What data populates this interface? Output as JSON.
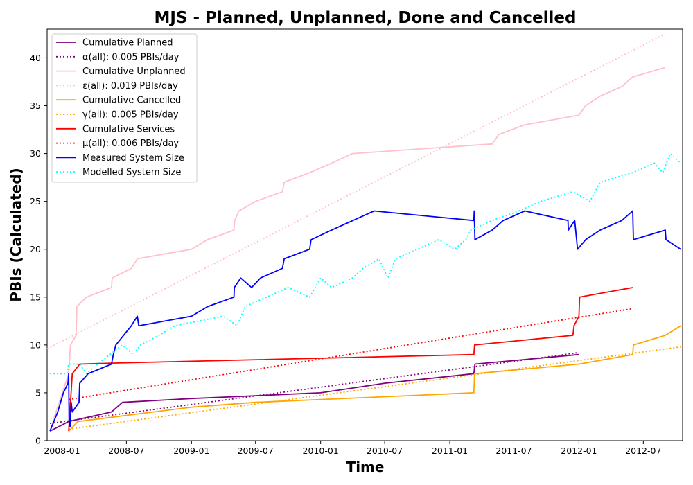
{
  "chart_data": {
    "type": "line",
    "title": "MJS - Planned, Unplanned, Done  and Cancelled",
    "xlabel": "Time",
    "ylabel": "PBIs (Calculated)",
    "x_axis": "date",
    "xlim": [
      "2007-11-20",
      "2012-10-20"
    ],
    "ylim": [
      0,
      43
    ],
    "x_tick_labels": [
      "2008-01",
      "2008-07",
      "2009-01",
      "2009-07",
      "2010-01",
      "2010-07",
      "2011-01",
      "2011-07",
      "2012-01",
      "2012-07"
    ],
    "y_ticks": [
      0,
      5,
      10,
      15,
      20,
      25,
      30,
      35,
      40
    ],
    "grid": false,
    "legend_position": "top-left",
    "series": [
      {
        "name": "Cumulative Planned",
        "color": "#800080",
        "style": "solid",
        "points": [
          [
            "2007-11-28",
            1
          ],
          [
            "2008-01-20",
            2
          ],
          [
            "2008-05-20",
            3
          ],
          [
            "2008-06-20",
            4
          ],
          [
            "2009-01-01",
            4.4
          ],
          [
            "2009-07-01",
            4.7
          ],
          [
            "2010-01-01",
            5
          ],
          [
            "2010-07-01",
            6
          ],
          [
            "2011-03-10",
            7
          ],
          [
            "2011-03-13",
            8
          ],
          [
            "2012-01-01",
            9
          ]
        ]
      },
      {
        "name": "α(all): 0.005 PBIs/day",
        "color": "#800080",
        "style": "dotted",
        "points": [
          [
            "2007-11-28",
            1.8
          ],
          [
            "2012-01-01",
            9.2
          ]
        ]
      },
      {
        "name": "Cumulative Unplanned",
        "color": "#ffc0cb",
        "style": "solid",
        "points": [
          [
            "2007-11-28",
            1
          ],
          [
            "2007-12-15",
            3
          ],
          [
            "2008-01-20",
            7
          ],
          [
            "2008-01-25",
            10
          ],
          [
            "2008-02-10",
            11
          ],
          [
            "2008-02-12",
            14
          ],
          [
            "2008-03-10",
            15
          ],
          [
            "2008-05-20",
            16
          ],
          [
            "2008-05-22",
            17
          ],
          [
            "2008-07-15",
            18
          ],
          [
            "2008-08-01",
            19
          ],
          [
            "2009-01-01",
            20
          ],
          [
            "2009-02-15",
            21
          ],
          [
            "2009-05-01",
            22
          ],
          [
            "2009-05-03",
            23
          ],
          [
            "2009-05-15",
            24
          ],
          [
            "2009-07-01",
            25
          ],
          [
            "2009-09-15",
            26
          ],
          [
            "2009-09-20",
            27
          ],
          [
            "2009-12-01",
            28
          ],
          [
            "2010-02-01",
            29
          ],
          [
            "2010-04-01",
            30
          ],
          [
            "2011-05-01",
            31
          ],
          [
            "2011-05-20",
            32
          ],
          [
            "2011-08-01",
            33
          ],
          [
            "2012-01-01",
            34
          ],
          [
            "2012-01-20",
            35
          ],
          [
            "2012-03-01",
            36
          ],
          [
            "2012-05-01",
            37
          ],
          [
            "2012-06-01",
            38
          ],
          [
            "2012-09-01",
            39
          ]
        ]
      },
      {
        "name": "ε(all): 0.019 PBIs/day",
        "color": "#ffc0cb",
        "style": "dotted",
        "points": [
          [
            "2007-11-20",
            9.6
          ],
          [
            "2012-09-01",
            42.5
          ]
        ]
      },
      {
        "name": "Cumulative Cancelled",
        "color": "#ffa500",
        "style": "solid",
        "points": [
          [
            "2008-01-20",
            1
          ],
          [
            "2008-02-15",
            2
          ],
          [
            "2009-01-01",
            3.5
          ],
          [
            "2009-07-01",
            4
          ],
          [
            "2010-01-01",
            4.3
          ],
          [
            "2011-03-10",
            5
          ],
          [
            "2011-03-12",
            7
          ],
          [
            "2012-01-01",
            8
          ],
          [
            "2012-06-01",
            9
          ],
          [
            "2012-06-03",
            10
          ],
          [
            "2012-09-01",
            11
          ],
          [
            "2012-10-15",
            12
          ]
        ]
      },
      {
        "name": "γ(all): 0.005 PBIs/day",
        "color": "#ffa500",
        "style": "dotted",
        "points": [
          [
            "2008-01-20",
            1.2
          ],
          [
            "2012-10-15",
            9.8
          ]
        ]
      },
      {
        "name": "Cumulative Services",
        "color": "#ff0000",
        "style": "solid",
        "points": [
          [
            "2008-01-20",
            1
          ],
          [
            "2008-01-30",
            7
          ],
          [
            "2008-02-20",
            8
          ],
          [
            "2008-05-20",
            8.1
          ],
          [
            "2011-03-10",
            9
          ],
          [
            "2011-03-12",
            10
          ],
          [
            "2011-12-15",
            11
          ],
          [
            "2011-12-18",
            12
          ],
          [
            "2012-01-01",
            13
          ],
          [
            "2012-01-03",
            15
          ],
          [
            "2012-06-01",
            16
          ]
        ]
      },
      {
        "name": "μ(all): 0.006 PBIs/day",
        "color": "#ff0000",
        "style": "dotted",
        "points": [
          [
            "2008-01-20",
            4.3
          ],
          [
            "2012-06-01",
            13.8
          ]
        ]
      },
      {
        "name": "Measured System Size",
        "color": "#0000ff",
        "style": "solid",
        "points": [
          [
            "2007-11-28",
            1
          ],
          [
            "2007-12-20",
            3
          ],
          [
            "2008-01-05",
            5
          ],
          [
            "2008-01-18",
            6
          ],
          [
            "2008-01-20",
            7
          ],
          [
            "2008-01-21",
            2
          ],
          [
            "2008-01-24",
            1.5
          ],
          [
            "2008-01-27",
            4
          ],
          [
            "2008-01-30",
            3
          ],
          [
            "2008-02-18",
            4
          ],
          [
            "2008-02-20",
            6
          ],
          [
            "2008-03-15",
            7
          ],
          [
            "2008-05-20",
            8
          ],
          [
            "2008-05-25",
            9
          ],
          [
            "2008-06-01",
            10
          ],
          [
            "2008-07-15",
            12
          ],
          [
            "2008-08-01",
            13
          ],
          [
            "2008-08-05",
            12
          ],
          [
            "2009-01-01",
            13
          ],
          [
            "2009-02-15",
            14
          ],
          [
            "2009-05-01",
            15
          ],
          [
            "2009-05-02",
            16
          ],
          [
            "2009-05-20",
            17
          ],
          [
            "2009-06-20",
            16
          ],
          [
            "2009-07-15",
            17
          ],
          [
            "2009-09-15",
            18
          ],
          [
            "2009-09-20",
            19
          ],
          [
            "2009-12-01",
            20
          ],
          [
            "2009-12-05",
            21
          ],
          [
            "2010-02-01",
            22
          ],
          [
            "2010-06-01",
            24
          ],
          [
            "2011-03-10",
            23
          ],
          [
            "2011-03-11",
            24
          ],
          [
            "2011-03-13",
            21
          ],
          [
            "2011-05-01",
            22
          ],
          [
            "2011-06-01",
            23
          ],
          [
            "2011-08-01",
            24
          ],
          [
            "2011-12-01",
            23
          ],
          [
            "2011-12-02",
            22
          ],
          [
            "2011-12-20",
            23
          ],
          [
            "2011-12-28",
            20
          ],
          [
            "2012-01-20",
            21
          ],
          [
            "2012-03-01",
            22
          ],
          [
            "2012-05-01",
            23
          ],
          [
            "2012-06-01",
            24
          ],
          [
            "2012-06-03",
            21
          ],
          [
            "2012-09-01",
            22
          ],
          [
            "2012-09-03",
            21
          ],
          [
            "2012-10-15",
            20
          ]
        ]
      },
      {
        "name": "Modelled System Size",
        "color": "#00ffff",
        "style": "dotted",
        "points": [
          [
            "2007-11-28",
            7
          ],
          [
            "2008-01-15",
            7
          ],
          [
            "2008-01-20",
            8
          ],
          [
            "2008-02-20",
            8
          ],
          [
            "2008-03-10",
            7
          ],
          [
            "2008-04-10",
            8
          ],
          [
            "2008-05-15",
            9
          ],
          [
            "2008-06-20",
            10
          ],
          [
            "2008-07-20",
            9
          ],
          [
            "2008-08-10",
            10
          ],
          [
            "2008-10-01",
            11
          ],
          [
            "2008-11-15",
            12
          ],
          [
            "2009-04-01",
            13
          ],
          [
            "2009-05-10",
            12
          ],
          [
            "2009-06-01",
            14
          ],
          [
            "2009-08-01",
            15
          ],
          [
            "2009-10-01",
            16
          ],
          [
            "2009-12-01",
            15
          ],
          [
            "2010-01-01",
            17
          ],
          [
            "2010-02-01",
            16
          ],
          [
            "2010-04-01",
            17
          ],
          [
            "2010-05-01",
            18
          ],
          [
            "2010-06-15",
            19
          ],
          [
            "2010-07-10",
            17
          ],
          [
            "2010-08-01",
            19
          ],
          [
            "2010-10-01",
            20
          ],
          [
            "2010-12-01",
            21
          ],
          [
            "2011-01-15",
            20
          ],
          [
            "2011-02-15",
            21
          ],
          [
            "2011-03-01",
            22
          ],
          [
            "2011-05-01",
            23
          ],
          [
            "2011-07-15",
            24
          ],
          [
            "2011-09-15",
            25
          ],
          [
            "2011-12-15",
            26
          ],
          [
            "2012-02-01",
            25
          ],
          [
            "2012-03-01",
            27
          ],
          [
            "2012-06-01",
            28
          ],
          [
            "2012-08-01",
            29
          ],
          [
            "2012-08-25",
            28
          ],
          [
            "2012-09-15",
            30
          ],
          [
            "2012-10-15",
            29
          ]
        ]
      }
    ]
  }
}
